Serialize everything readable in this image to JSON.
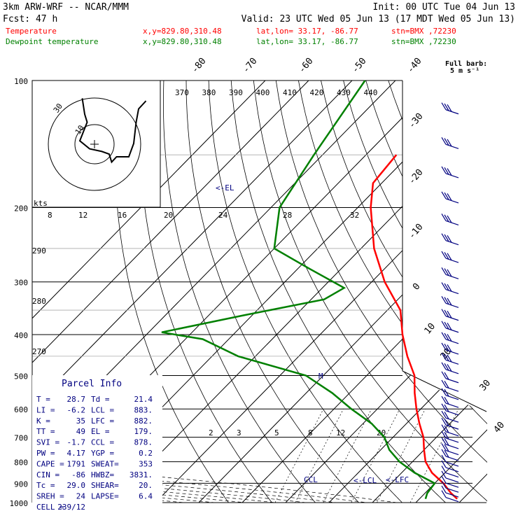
{
  "header": {
    "model": "3km ARW-WRF -- NCAR/MMM",
    "init": "Init: 00 UTC Tue 04 Jun 13",
    "fcst": "Fcst:   47 h",
    "valid": "Valid: 23 UTC Wed 05 Jun 13 (17 MDT Wed 05 Jun 13)",
    "temp_label": "Temperature",
    "dew_label": "Dewpoint temperature",
    "xy": "x,y=829.80,310.48",
    "latlon": "lat,lon= 33.17, -86.77",
    "stn": "stn=BMX ,72230",
    "full_barb": "Full barb:",
    "full_barb_unit": "5 m s⁻¹"
  },
  "colors": {
    "temperature": "#ff0000",
    "dewpoint": "#008000",
    "grid": "#000000",
    "barb": "#000080",
    "label_red": "#ff0000",
    "label_green": "#008000",
    "parcel": "#000080"
  },
  "chart_data": {
    "type": "line",
    "title": "",
    "pressure_ticks": [
      "100",
      "200",
      "300",
      "400",
      "500",
      "600",
      "700",
      "800",
      "900",
      "1000"
    ],
    "temp_axis_labels": [
      "-80",
      "-70",
      "-60",
      "-50",
      "-40",
      "-30",
      "-20",
      "-10",
      "0",
      "10",
      "20",
      "30",
      "40"
    ],
    "theta_labels": [
      "370",
      "380",
      "390",
      "400",
      "410",
      "420",
      "430",
      "440"
    ],
    "theta_low_labels": [
      "290",
      "280",
      "270"
    ],
    "mixing_ratio_labels": [
      "2",
      "3",
      "5",
      "8",
      "12",
      "20"
    ],
    "hodo_labels": [
      "30",
      "10"
    ],
    "hodo_speed_labels": [
      "8",
      "12",
      "16",
      "20",
      "24",
      "28",
      "32"
    ],
    "hodo_unit": "kts",
    "el_label": "<-EL",
    "lcl_label": "<-LCL",
    "lfc_label": "<-LFC",
    "ccl_label": "CCL",
    "m_label": "M",
    "series": [
      {
        "name": "Temperature",
        "points": [
          [
            150,
            -63
          ],
          [
            175,
            -62
          ],
          [
            200,
            -57
          ],
          [
            250,
            -47
          ],
          [
            300,
            -37
          ],
          [
            350,
            -27
          ],
          [
            400,
            -21
          ],
          [
            450,
            -15
          ],
          [
            500,
            -9
          ],
          [
            550,
            -5
          ],
          [
            600,
            -1
          ],
          [
            650,
            3
          ],
          [
            700,
            7
          ],
          [
            750,
            10
          ],
          [
            800,
            13
          ],
          [
            850,
            17
          ],
          [
            900,
            22
          ],
          [
            950,
            26
          ],
          [
            980,
            28.7
          ]
        ]
      },
      {
        "name": "Dewpoint temperature",
        "points": [
          [
            100,
            -87
          ],
          [
            150,
            -82
          ],
          [
            200,
            -78
          ],
          [
            250,
            -70
          ],
          [
            280,
            -57
          ],
          [
            310,
            -45
          ],
          [
            330,
            -47
          ],
          [
            360,
            -62
          ],
          [
            395,
            -77
          ],
          [
            410,
            -66
          ],
          [
            450,
            -54
          ],
          [
            500,
            -34
          ],
          [
            550,
            -24
          ],
          [
            600,
            -16
          ],
          [
            650,
            -8
          ],
          [
            700,
            -2
          ],
          [
            750,
            2
          ],
          [
            800,
            7
          ],
          [
            850,
            13
          ],
          [
            900,
            20
          ],
          [
            950,
            20.5
          ],
          [
            980,
            21.4
          ]
        ]
      }
    ],
    "hodograph": [
      [
        -5,
        12
      ],
      [
        -4,
        6
      ],
      [
        -3,
        3
      ],
      [
        -6,
        -4
      ],
      [
        -2,
        -7
      ],
      [
        3,
        -8
      ],
      [
        6,
        -9
      ],
      [
        7,
        -12
      ],
      [
        9,
        -10
      ],
      [
        14,
        -10
      ],
      [
        16,
        -5
      ],
      [
        17,
        3
      ],
      [
        18,
        8
      ],
      [
        20,
        10
      ],
      [
        21,
        11
      ]
    ]
  },
  "parcel": {
    "title": "Parcel Info",
    "rows": [
      [
        "T  =",
        "28.7",
        "Td =",
        "21.4"
      ],
      [
        "LI =",
        "-6.2",
        "LCL =",
        "883."
      ],
      [
        "K  =",
        "35",
        "LFC =",
        "882."
      ],
      [
        "TT =",
        "49",
        "EL  =",
        "179."
      ],
      [
        "SVI =",
        "-1.7",
        "CCL =",
        "878."
      ],
      [
        "PW =",
        "4.17",
        "YGP =",
        "0.2"
      ],
      [
        "CAPE =",
        "1791",
        "SWEAT=",
        "353"
      ],
      [
        "CIN  =",
        "-86",
        "HWBZ=",
        "3831."
      ],
      [
        "Tc   =",
        "29.0",
        "SHEAR=",
        "20."
      ],
      [
        "SREH =",
        "24",
        "LAPSE=",
        "6.4"
      ],
      [
        "CELL =",
        "239/12",
        "",
        ""
      ]
    ]
  }
}
